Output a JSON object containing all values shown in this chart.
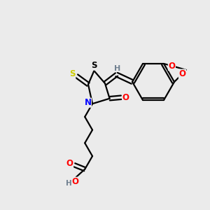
{
  "bg_color": "#ebebeb",
  "bond_color": "#000000",
  "bond_width": 1.6,
  "atom_colors": {
    "S_thione": "#cccc00",
    "S_ring": "#000000",
    "N": "#0000ff",
    "O": "#ff0000",
    "H": "#708090",
    "C": "#000000"
  },
  "font_size": 8.5
}
